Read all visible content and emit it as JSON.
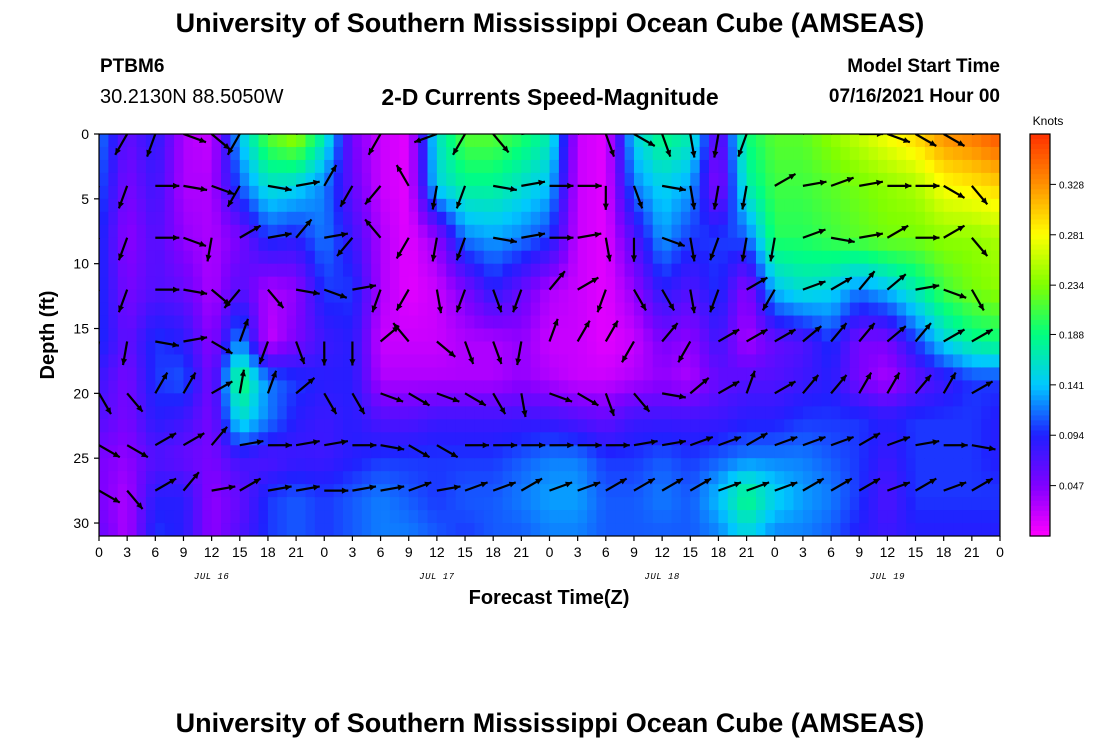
{
  "header": {
    "title": "University of Southern Mississippi Ocean Cube (AMSEAS)",
    "station_id": "PTBM6",
    "coordinates": "30.2130N  88.5050W",
    "plot_title": "2-D Currents Speed-Magnitude",
    "model_start_label": "Model Start Time",
    "model_start_value": "07/16/2021 Hour 00"
  },
  "footer": {
    "title": "University of Southern Mississippi Ocean Cube (AMSEAS)"
  },
  "colors": {
    "background": "#ffffff",
    "arrow": "#000000",
    "scale": [
      "#ff00ff",
      "#8000ff",
      "#2020ff",
      "#00c8ff",
      "#00ff80",
      "#80ff00",
      "#ffff00",
      "#ff9000",
      "#ff3000"
    ]
  },
  "chart_data": {
    "type": "heatmap",
    "title": "2-D Currents Speed-Magnitude",
    "xlabel": "Forecast Time(Z)",
    "ylabel": "Depth (ft)",
    "x_hours_range": [
      0,
      96
    ],
    "ylim": [
      0,
      31
    ],
    "y_ticks": [
      0,
      5,
      10,
      15,
      20,
      25,
      30
    ],
    "x_tick_labels": [
      "0",
      "3",
      "6",
      "9",
      "12",
      "15",
      "18",
      "21",
      "0",
      "3",
      "6",
      "9",
      "12",
      "15",
      "18",
      "21",
      "0",
      "3",
      "6",
      "9",
      "12",
      "15",
      "18",
      "21",
      "0",
      "3",
      "6",
      "9",
      "12",
      "15",
      "18",
      "21",
      "0"
    ],
    "day_labels": [
      {
        "hour": 12,
        "text": "JUL 16"
      },
      {
        "hour": 36,
        "text": "JUL 17"
      },
      {
        "hour": 60,
        "text": "JUL 18"
      },
      {
        "hour": 84,
        "text": "JUL 19"
      }
    ],
    "colorbar": {
      "unit": "Knots",
      "min": 0.0,
      "max": 0.375,
      "tick_labels": [
        "0.328",
        "0.281",
        "0.234",
        "0.188",
        "0.141",
        "0.094",
        "0.047"
      ],
      "tick_values": [
        0.328,
        0.281,
        0.234,
        0.188,
        0.141,
        0.094,
        0.047
      ]
    },
    "depth_levels_ft": [
      0,
      4,
      8,
      12,
      16,
      19,
      22,
      25,
      28,
      31
    ],
    "speed_columns": [
      {
        "hour": 0,
        "speeds": [
          0.12,
          0.11,
          0.1,
          0.1,
          0.1,
          0.08,
          0.07,
          0.05,
          0.05,
          0.06
        ]
      },
      {
        "hour": 3,
        "speeds": [
          0.06,
          0.05,
          0.04,
          0.05,
          0.06,
          0.05,
          0.05,
          0.04,
          0.03,
          0.03
        ]
      },
      {
        "hour": 6,
        "speeds": [
          0.09,
          0.08,
          0.07,
          0.07,
          0.1,
          0.1,
          0.09,
          0.07,
          0.09,
          0.1
        ]
      },
      {
        "hour": 9,
        "speeds": [
          0.03,
          0.03,
          0.04,
          0.06,
          0.09,
          0.11,
          0.08,
          0.06,
          0.09,
          0.09
        ]
      },
      {
        "hour": 12,
        "speeds": [
          0.02,
          0.03,
          0.03,
          0.03,
          0.04,
          0.05,
          0.05,
          0.05,
          0.04,
          0.04
        ]
      },
      {
        "hour": 15,
        "speeds": [
          0.14,
          0.11,
          0.05,
          0.07,
          0.13,
          0.2,
          0.16,
          0.08,
          0.06,
          0.07
        ]
      },
      {
        "hour": 18,
        "speeds": [
          0.22,
          0.16,
          0.1,
          0.03,
          0.02,
          0.12,
          0.12,
          0.07,
          0.1,
          0.1
        ]
      },
      {
        "hour": 21,
        "speeds": [
          0.25,
          0.15,
          0.09,
          0.04,
          0.05,
          0.1,
          0.09,
          0.08,
          0.11,
          0.11
        ]
      },
      {
        "hour": 24,
        "speeds": [
          0.17,
          0.12,
          0.12,
          0.1,
          0.08,
          0.09,
          0.08,
          0.08,
          0.1,
          0.1
        ]
      },
      {
        "hour": 27,
        "speeds": [
          0.05,
          0.06,
          0.08,
          0.1,
          0.09,
          0.09,
          0.09,
          0.09,
          0.11,
          0.11
        ]
      },
      {
        "hour": 30,
        "speeds": [
          0.02,
          0.02,
          0.03,
          0.03,
          0.02,
          0.03,
          0.07,
          0.1,
          0.12,
          0.12
        ]
      },
      {
        "hour": 33,
        "speeds": [
          0.01,
          0.01,
          0.01,
          0.01,
          0.02,
          0.03,
          0.07,
          0.1,
          0.11,
          0.12
        ]
      },
      {
        "hour": 36,
        "speeds": [
          0.16,
          0.15,
          0.04,
          0.02,
          0.02,
          0.03,
          0.08,
          0.1,
          0.1,
          0.11
        ]
      },
      {
        "hour": 39,
        "speeds": [
          0.22,
          0.18,
          0.12,
          0.05,
          0.03,
          0.03,
          0.08,
          0.1,
          0.11,
          0.1
        ]
      },
      {
        "hour": 42,
        "speeds": [
          0.22,
          0.18,
          0.13,
          0.09,
          0.03,
          0.03,
          0.08,
          0.1,
          0.11,
          0.11
        ]
      },
      {
        "hour": 45,
        "speeds": [
          0.2,
          0.16,
          0.12,
          0.06,
          0.04,
          0.04,
          0.08,
          0.11,
          0.12,
          0.11
        ]
      },
      {
        "hour": 48,
        "speeds": [
          0.17,
          0.14,
          0.1,
          0.03,
          0.02,
          0.03,
          0.08,
          0.12,
          0.13,
          0.12
        ]
      },
      {
        "hour": 51,
        "speeds": [
          0.02,
          0.02,
          0.02,
          0.02,
          0.02,
          0.02,
          0.07,
          0.12,
          0.13,
          0.12
        ]
      },
      {
        "hour": 54,
        "speeds": [
          0.01,
          0.01,
          0.01,
          0.01,
          0.01,
          0.02,
          0.06,
          0.1,
          0.11,
          0.11
        ]
      },
      {
        "hour": 57,
        "speeds": [
          0.15,
          0.12,
          0.07,
          0.04,
          0.02,
          0.03,
          0.08,
          0.1,
          0.11,
          0.11
        ]
      },
      {
        "hour": 60,
        "speeds": [
          0.19,
          0.15,
          0.13,
          0.09,
          0.05,
          0.04,
          0.08,
          0.11,
          0.12,
          0.11
        ]
      },
      {
        "hour": 63,
        "speeds": [
          0.17,
          0.13,
          0.1,
          0.07,
          0.04,
          0.03,
          0.08,
          0.1,
          0.11,
          0.11
        ]
      },
      {
        "hour": 66,
        "speeds": [
          0.05,
          0.04,
          0.1,
          0.1,
          0.08,
          0.06,
          0.08,
          0.11,
          0.14,
          0.12
        ]
      },
      {
        "hour": 69,
        "speeds": [
          0.19,
          0.17,
          0.11,
          0.04,
          0.03,
          0.07,
          0.09,
          0.12,
          0.19,
          0.15
        ]
      },
      {
        "hour": 72,
        "speeds": [
          0.22,
          0.21,
          0.2,
          0.14,
          0.06,
          0.07,
          0.09,
          0.12,
          0.15,
          0.12
        ]
      },
      {
        "hour": 75,
        "speeds": [
          0.22,
          0.21,
          0.2,
          0.16,
          0.07,
          0.08,
          0.1,
          0.12,
          0.13,
          0.12
        ]
      },
      {
        "hour": 78,
        "speeds": [
          0.24,
          0.22,
          0.21,
          0.15,
          0.1,
          0.09,
          0.1,
          0.11,
          0.12,
          0.11
        ]
      },
      {
        "hour": 81,
        "speeds": [
          0.26,
          0.23,
          0.22,
          0.12,
          0.05,
          0.05,
          0.1,
          0.1,
          0.1,
          0.09
        ]
      },
      {
        "hour": 84,
        "speeds": [
          0.28,
          0.24,
          0.23,
          0.14,
          0.05,
          0.03,
          0.09,
          0.08,
          0.07,
          0.08
        ]
      },
      {
        "hour": 87,
        "speeds": [
          0.3,
          0.25,
          0.23,
          0.17,
          0.1,
          0.06,
          0.1,
          0.1,
          0.1,
          0.09
        ]
      },
      {
        "hour": 90,
        "speeds": [
          0.33,
          0.28,
          0.24,
          0.21,
          0.15,
          0.08,
          0.1,
          0.1,
          0.1,
          0.09
        ]
      },
      {
        "hour": 93,
        "speeds": [
          0.34,
          0.29,
          0.24,
          0.23,
          0.18,
          0.1,
          0.1,
          0.1,
          0.1,
          0.09
        ]
      },
      {
        "hour": 96,
        "speeds": [
          0.36,
          0.3,
          0.25,
          0.24,
          0.19,
          0.1,
          0.09,
          0.09,
          0.1,
          0.09
        ]
      }
    ],
    "arrow_depths_ft": [
      0,
      4,
      8,
      12,
      16,
      20,
      24,
      27.5
    ],
    "arrow_hours": [
      0,
      3,
      6,
      9,
      12,
      15,
      18,
      21,
      24,
      27,
      30,
      33,
      36,
      39,
      42,
      45,
      48,
      51,
      54,
      57,
      60,
      63,
      66,
      69,
      72,
      75,
      78,
      81,
      84,
      87,
      90,
      93,
      96
    ],
    "arrow_directions_deg": [
      [
        200,
        210,
        200,
        110,
        130,
        210,
        80,
        70,
        20,
        20,
        210,
        40,
        250,
        210,
        140,
        80,
        40,
        60,
        160,
        120,
        160,
        170,
        190,
        200,
        40,
        60,
        50,
        90,
        110,
        120,
        120,
        80,
        90
      ],
      [
        200,
        200,
        90,
        100,
        110,
        210,
        100,
        80,
        30,
        210,
        220,
        330,
        190,
        200,
        100,
        80,
        90,
        90,
        180,
        160,
        100,
        170,
        190,
        190,
        60,
        80,
        70,
        80,
        90,
        90,
        120,
        140,
        100
      ],
      [
        200,
        200,
        90,
        110,
        190,
        60,
        80,
        40,
        80,
        220,
        320,
        210,
        190,
        200,
        100,
        80,
        90,
        80,
        170,
        180,
        110,
        170,
        200,
        190,
        190,
        70,
        100,
        80,
        60,
        90,
        60,
        140,
        100
      ],
      [
        200,
        200,
        90,
        100,
        130,
        220,
        140,
        100,
        110,
        80,
        200,
        210,
        170,
        200,
        160,
        200,
        40,
        60,
        200,
        150,
        150,
        170,
        200,
        60,
        210,
        70,
        60,
        40,
        50,
        80,
        110,
        150,
        110
      ],
      [
        190,
        190,
        100,
        80,
        120,
        20,
        200,
        160,
        180,
        180,
        50,
        320,
        130,
        160,
        160,
        190,
        20,
        30,
        30,
        210,
        40,
        210,
        60,
        60,
        60,
        50,
        40,
        40,
        50,
        40,
        60,
        60,
        120
      ],
      [
        150,
        140,
        30,
        30,
        60,
        10,
        20,
        50,
        150,
        150,
        110,
        120,
        110,
        120,
        150,
        170,
        110,
        120,
        160,
        140,
        100,
        50,
        60,
        20,
        60,
        40,
        40,
        30,
        30,
        40,
        30,
        60,
        50
      ],
      [
        120,
        120,
        60,
        60,
        40,
        80,
        90,
        80,
        80,
        90,
        100,
        120,
        120,
        90,
        90,
        90,
        90,
        90,
        90,
        80,
        80,
        70,
        70,
        60,
        70,
        70,
        70,
        60,
        70,
        80,
        90,
        100,
        70
      ],
      [
        120,
        140,
        60,
        40,
        80,
        60,
        80,
        80,
        90,
        80,
        80,
        70,
        80,
        70,
        70,
        60,
        70,
        70,
        60,
        60,
        60,
        60,
        70,
        70,
        70,
        60,
        60,
        60,
        70,
        60,
        70,
        60,
        50
      ]
    ]
  }
}
